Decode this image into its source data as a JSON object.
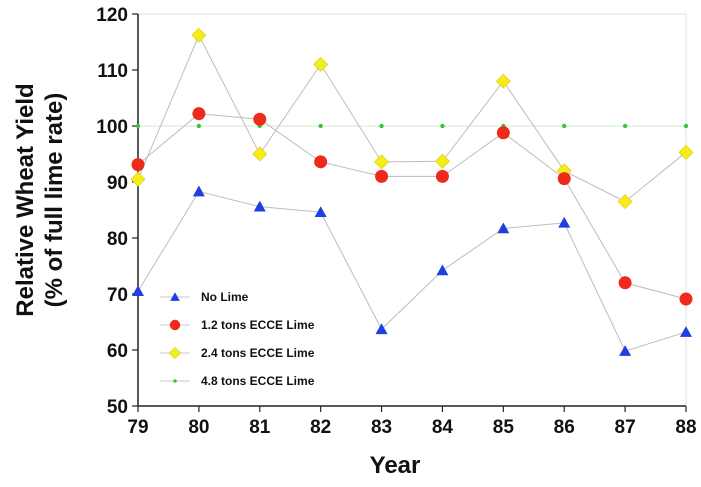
{
  "chart_data": {
    "type": "line",
    "title": "",
    "xlabel": "Year",
    "ylabel_lines": [
      "Relative Wheat Yield",
      "(% of full lime rate)"
    ],
    "categories": [
      "79",
      "80",
      "81",
      "82",
      "83",
      "84",
      "85",
      "86",
      "87",
      "88"
    ],
    "ylim": [
      50,
      120
    ],
    "yticks": [
      "50",
      "60",
      "70",
      "80",
      "90",
      "100",
      "110",
      "120"
    ],
    "grid": false,
    "legend_position": "bottom-left",
    "series": [
      {
        "name": "No Lime",
        "marker": "triangle",
        "color": "#1f3fe0",
        "values": [
          70.5,
          88.3,
          85.6,
          84.6,
          63.7,
          74.2,
          81.7,
          82.7,
          59.8,
          63.2
        ]
      },
      {
        "name": "1.2 tons ECCE Lime",
        "marker": "circle",
        "color": "#ee2a1c",
        "values": [
          93.1,
          102.2,
          101.2,
          93.6,
          91.0,
          91.0,
          98.8,
          90.6,
          72.0,
          69.1
        ]
      },
      {
        "name": "2.4 tons ECCE Lime",
        "marker": "diamond",
        "color": "#f2ee18",
        "values": [
          90.5,
          116.2,
          95.0,
          111.0,
          93.6,
          93.7,
          108.0,
          92.0,
          86.5,
          95.3
        ]
      },
      {
        "name": "4.8 tons ECCE Lime",
        "marker": "dot",
        "color": "#3dc23d",
        "values": [
          100,
          100,
          100,
          100,
          100,
          100,
          100,
          100,
          100,
          100
        ]
      }
    ]
  }
}
